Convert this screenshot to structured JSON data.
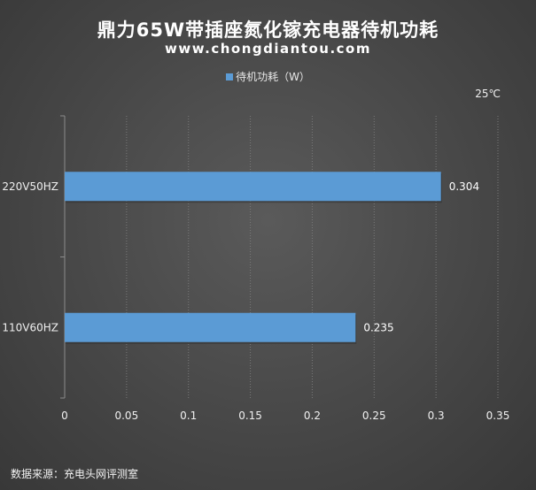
{
  "title": "鼎力65W带插座氮化镓充电器待机功耗",
  "subtitle": "www.chongdiantou.com",
  "legend_label": "待机功耗（W）",
  "temperature_note": "25℃",
  "source_note": "数据来源：充电头网评测室",
  "colors": {
    "bar": "#5b9bd5",
    "grid": "#7a7a7a",
    "text": "#ffffff"
  },
  "chart_data": {
    "type": "bar",
    "orientation": "horizontal",
    "categories": [
      "220V50HZ",
      "110V60HZ"
    ],
    "series": [
      {
        "name": "待机功耗（W）",
        "values": [
          0.304,
          0.235
        ]
      }
    ],
    "data_labels": [
      "0.304",
      "0.235"
    ],
    "xlim": [
      0,
      0.35
    ],
    "x_ticks": [
      0,
      0.05,
      0.1,
      0.15,
      0.2,
      0.25,
      0.3,
      0.35
    ],
    "x_tick_labels": [
      "0",
      "0.05",
      "0.1",
      "0.15",
      "0.2",
      "0.25",
      "0.3",
      "0.35"
    ],
    "grid": true,
    "legend_position": "top"
  }
}
